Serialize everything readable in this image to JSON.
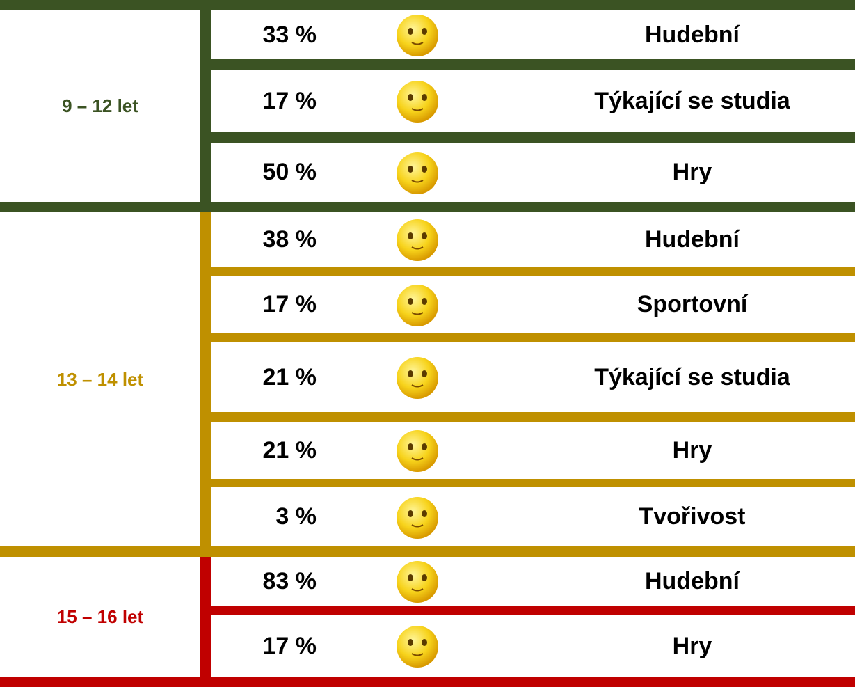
{
  "groups": [
    {
      "age": "9 – 12 let",
      "color": "#3b5323",
      "rows": [
        {
          "percent": "33 %",
          "activity": "Hudební"
        },
        {
          "percent": "17 %",
          "activity": "Týkající se studia"
        },
        {
          "percent": "50 %",
          "activity": "Hry"
        }
      ]
    },
    {
      "age": "13 – 14 let",
      "color": "#bf9000",
      "rows": [
        {
          "percent": "38 %",
          "activity": "Hudební"
        },
        {
          "percent": "17 %",
          "activity": "Sportovní"
        },
        {
          "percent": "21 %",
          "activity": "Týkající se studia"
        },
        {
          "percent": "21 %",
          "activity": "Hry"
        },
        {
          "percent": "3 %",
          "activity": "Tvořivost"
        }
      ]
    },
    {
      "age": "15 – 16 let",
      "color": "#c00000",
      "rows": [
        {
          "percent": "83 %",
          "activity": "Hudební"
        },
        {
          "percent": "17 %",
          "activity": "Hry"
        }
      ]
    }
  ]
}
